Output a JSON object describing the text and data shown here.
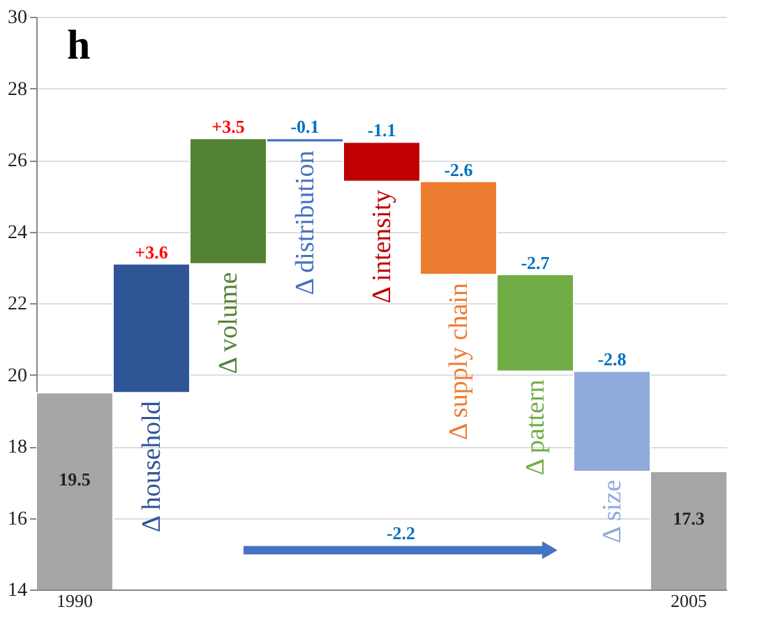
{
  "chart_data": {
    "type": "bar",
    "title": "h",
    "categories": [
      "1990",
      "Δ household",
      "Δ volume",
      "Δ distribution",
      "Δ intensity",
      "Δ supply chain",
      "Δ pattern",
      "Δ size",
      "2005"
    ],
    "values": [
      19.5,
      3.6,
      3.5,
      -0.1,
      -1.1,
      -2.6,
      -2.7,
      -2.8,
      17.3
    ],
    "base": [
      null,
      19.5,
      23.1,
      26.6,
      26.5,
      25.4,
      22.8,
      20.1,
      null
    ],
    "colors": [
      "#a6a6a6",
      "#2f5597",
      "#548235",
      "#4472c4",
      "#c00000",
      "#ed7d31",
      "#70ad47",
      "#8faadc",
      "#a6a6a6"
    ],
    "value_labels": [
      "19.5",
      "+3.6",
      "+3.5",
      "-0.1",
      "-1.1",
      "-2.6",
      "-2.7",
      "-2.8",
      "17.3"
    ],
    "ylim": [
      14,
      30
    ],
    "yticks": [
      14,
      16,
      18,
      20,
      22,
      24,
      26,
      28,
      30
    ],
    "grid": "y",
    "annotations": [
      "-2.2"
    ]
  }
}
